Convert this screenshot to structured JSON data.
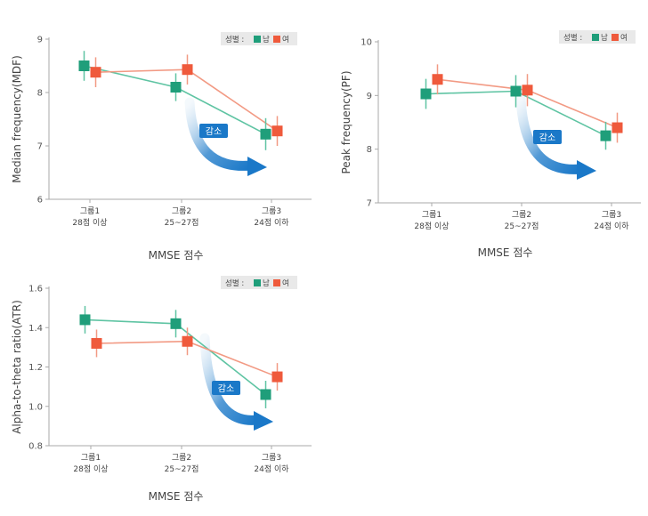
{
  "colors": {
    "male": "#1f9e7a",
    "female": "#ef5a3c",
    "male_line": "#5fc4a3",
    "female_line": "#f29a84",
    "axis": "#aaaaaa",
    "arrow": "#1a78c8",
    "arrow_light": "#c9e0f2"
  },
  "legend": {
    "title": "성별 :",
    "male": "남",
    "female": "여"
  },
  "arrow_label": "감소",
  "chart_data": [
    {
      "type": "line",
      "ylabel": "Median frequency(MDF)",
      "xlabel": "MMSE 점수",
      "ylim": [
        6,
        9
      ],
      "yticks": [
        "6",
        "7",
        "8",
        "9"
      ],
      "categories": [
        {
          "line1": "그룹1",
          "line2": "28점 이상"
        },
        {
          "line1": "그룹2",
          "line2": "25~27점"
        },
        {
          "line1": "그룹3",
          "line2": "24점 이하"
        }
      ],
      "series": [
        {
          "name": "남",
          "values": [
            8.5,
            8.1,
            7.22
          ],
          "errors": [
            0.28,
            0.26,
            0.3
          ]
        },
        {
          "name": "여",
          "values": [
            8.38,
            8.43,
            7.28
          ],
          "errors": [
            0.28,
            0.28,
            0.28
          ]
        }
      ]
    },
    {
      "type": "line",
      "ylabel": "Peak frequency(PF)",
      "xlabel": "MMSE 점수",
      "ylim": [
        7,
        10
      ],
      "yticks": [
        "7",
        "8",
        "9",
        "10"
      ],
      "categories": [
        {
          "line1": "그룹1",
          "line2": "28점 이상"
        },
        {
          "line1": "그룹2",
          "line2": "25~27점"
        },
        {
          "line1": "그룹3",
          "line2": "24점 이하"
        }
      ],
      "series": [
        {
          "name": "남",
          "values": [
            9.03,
            9.08,
            8.25
          ],
          "errors": [
            0.28,
            0.3,
            0.26
          ]
        },
        {
          "name": "여",
          "values": [
            9.3,
            9.1,
            8.4
          ],
          "errors": [
            0.28,
            0.3,
            0.28
          ]
        }
      ]
    },
    {
      "type": "line",
      "ylabel": "Alpha-to-theta ratio(ATR)",
      "xlabel": "MMSE 점수",
      "ylim": [
        0.8,
        1.6
      ],
      "yticks": [
        "0.8",
        "1.0",
        "1.2",
        "1.4",
        "1.6"
      ],
      "categories": [
        {
          "line1": "그룹1",
          "line2": "28점 이상"
        },
        {
          "line1": "그룹2",
          "line2": "25~27점"
        },
        {
          "line1": "그룹3",
          "line2": "24점 이하"
        }
      ],
      "series": [
        {
          "name": "남",
          "values": [
            1.44,
            1.42,
            1.06
          ],
          "errors": [
            0.07,
            0.07,
            0.07
          ]
        },
        {
          "name": "여",
          "values": [
            1.32,
            1.33,
            1.15
          ],
          "errors": [
            0.07,
            0.07,
            0.07
          ]
        }
      ]
    }
  ]
}
